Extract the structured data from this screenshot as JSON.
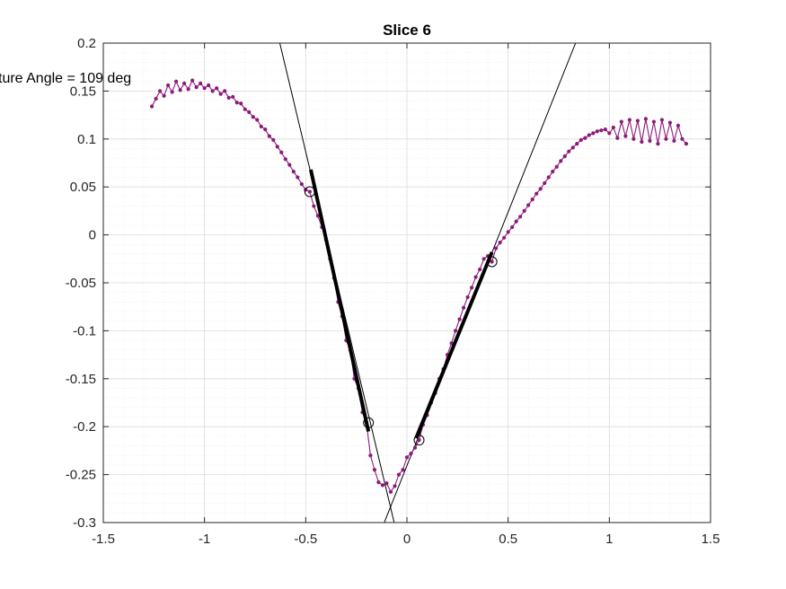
{
  "chart_data": {
    "type": "line",
    "title": "Slice 6",
    "annotation": "ture Angle = 109 deg",
    "xlabel": "",
    "ylabel": "",
    "xlim": [
      -1.5,
      1.5
    ],
    "ylim": [
      -0.3,
      0.2
    ],
    "xticks": [
      -1.5,
      -1,
      -0.5,
      0,
      0.5,
      1,
      1.5
    ],
    "xtick_labels": [
      "-1.5",
      "-1",
      "-0.5",
      "0",
      "0.5",
      "1",
      "1.5"
    ],
    "yticks": [
      -0.3,
      -0.25,
      -0.2,
      -0.15,
      -0.1,
      -0.05,
      0,
      0.05,
      0.1,
      0.15,
      0.2
    ],
    "ytick_labels": [
      "-0.3",
      "-0.25",
      "-0.2",
      "-0.15",
      "-0.1",
      "-0.05",
      "0",
      "0.05",
      "0.1",
      "0.15",
      "0.2"
    ],
    "grid": true,
    "minor_grid": true,
    "colors": {
      "profile": "#8b1a7a",
      "fit_line": "#000000"
    },
    "series": [
      {
        "points": [
          [
            -1.26,
            0.134
          ],
          [
            -1.24,
            0.142
          ],
          [
            -1.22,
            0.15
          ],
          [
            -1.2,
            0.145
          ],
          [
            -1.18,
            0.156
          ],
          [
            -1.16,
            0.149
          ],
          [
            -1.14,
            0.16
          ],
          [
            -1.12,
            0.151
          ],
          [
            -1.1,
            0.158
          ],
          [
            -1.08,
            0.152
          ],
          [
            -1.06,
            0.161
          ],
          [
            -1.04,
            0.154
          ],
          [
            -1.02,
            0.158
          ],
          [
            -1.0,
            0.153
          ],
          [
            -0.98,
            0.156
          ],
          [
            -0.96,
            0.15
          ],
          [
            -0.94,
            0.153
          ],
          [
            -0.92,
            0.147
          ],
          [
            -0.9,
            0.15
          ],
          [
            -0.88,
            0.143
          ],
          [
            -0.86,
            0.144
          ],
          [
            -0.84,
            0.138
          ],
          [
            -0.82,
            0.137
          ],
          [
            -0.8,
            0.131
          ],
          [
            -0.78,
            0.128
          ],
          [
            -0.76,
            0.123
          ],
          [
            -0.74,
            0.12
          ],
          [
            -0.72,
            0.113
          ],
          [
            -0.7,
            0.11
          ],
          [
            -0.68,
            0.103
          ],
          [
            -0.66,
            0.099
          ],
          [
            -0.64,
            0.092
          ],
          [
            -0.62,
            0.086
          ],
          [
            -0.6,
            0.079
          ],
          [
            -0.58,
            0.073
          ],
          [
            -0.56,
            0.066
          ],
          [
            -0.54,
            0.06
          ],
          [
            -0.52,
            0.053
          ],
          [
            -0.5,
            0.047
          ],
          [
            -0.48,
            0.045
          ],
          [
            -0.46,
            0.03
          ],
          [
            -0.44,
            0.02
          ],
          [
            -0.42,
            0.008
          ],
          [
            -0.4,
            -0.005
          ],
          [
            -0.38,
            -0.025
          ],
          [
            -0.36,
            -0.045
          ],
          [
            -0.34,
            -0.07
          ],
          [
            -0.32,
            -0.085
          ],
          [
            -0.3,
            -0.11
          ],
          [
            -0.28,
            -0.12
          ],
          [
            -0.26,
            -0.15
          ],
          [
            -0.24,
            -0.16
          ],
          [
            -0.22,
            -0.185
          ],
          [
            -0.2,
            -0.196
          ],
          [
            -0.18,
            -0.23
          ],
          [
            -0.16,
            -0.245
          ],
          [
            -0.14,
            -0.258
          ],
          [
            -0.12,
            -0.261
          ],
          [
            -0.1,
            -0.259
          ],
          [
            -0.08,
            -0.268
          ],
          [
            -0.06,
            -0.262
          ],
          [
            -0.04,
            -0.25
          ],
          [
            -0.02,
            -0.245
          ],
          [
            0.0,
            -0.232
          ],
          [
            0.02,
            -0.228
          ],
          [
            0.04,
            -0.222
          ],
          [
            0.06,
            -0.214
          ],
          [
            0.08,
            -0.198
          ],
          [
            0.1,
            -0.188
          ],
          [
            0.12,
            -0.175
          ],
          [
            0.14,
            -0.165
          ],
          [
            0.16,
            -0.15
          ],
          [
            0.18,
            -0.14
          ],
          [
            0.2,
            -0.125
          ],
          [
            0.22,
            -0.113
          ],
          [
            0.24,
            -0.1
          ],
          [
            0.26,
            -0.088
          ],
          [
            0.28,
            -0.076
          ],
          [
            0.3,
            -0.065
          ],
          [
            0.32,
            -0.055
          ],
          [
            0.34,
            -0.044
          ],
          [
            0.36,
            -0.036
          ],
          [
            0.38,
            -0.025
          ],
          [
            0.4,
            -0.022
          ],
          [
            0.42,
            -0.028
          ],
          [
            0.44,
            -0.014
          ],
          [
            0.46,
            -0.008
          ],
          [
            0.48,
            -0.003
          ],
          [
            0.5,
            0.003
          ],
          [
            0.52,
            0.008
          ],
          [
            0.54,
            0.014
          ],
          [
            0.56,
            0.019
          ],
          [
            0.58,
            0.025
          ],
          [
            0.6,
            0.031
          ],
          [
            0.62,
            0.037
          ],
          [
            0.64,
            0.043
          ],
          [
            0.66,
            0.048
          ],
          [
            0.68,
            0.054
          ],
          [
            0.7,
            0.06
          ],
          [
            0.72,
            0.066
          ],
          [
            0.74,
            0.071
          ],
          [
            0.76,
            0.077
          ],
          [
            0.78,
            0.082
          ],
          [
            0.8,
            0.087
          ],
          [
            0.82,
            0.091
          ],
          [
            0.84,
            0.095
          ],
          [
            0.86,
            0.099
          ],
          [
            0.88,
            0.101
          ],
          [
            0.9,
            0.104
          ],
          [
            0.92,
            0.106
          ],
          [
            0.94,
            0.108
          ],
          [
            0.96,
            0.109
          ],
          [
            0.98,
            0.11
          ],
          [
            1.0,
            0.106
          ],
          [
            1.02,
            0.112
          ],
          [
            1.04,
            0.101
          ],
          [
            1.06,
            0.118
          ],
          [
            1.08,
            0.103
          ],
          [
            1.1,
            0.12
          ],
          [
            1.12,
            0.1
          ],
          [
            1.14,
            0.119
          ],
          [
            1.16,
            0.097
          ],
          [
            1.18,
            0.121
          ],
          [
            1.2,
            0.098
          ],
          [
            1.22,
            0.118
          ],
          [
            1.24,
            0.095
          ],
          [
            1.26,
            0.12
          ],
          [
            1.28,
            0.1
          ],
          [
            1.3,
            0.117
          ],
          [
            1.32,
            0.098
          ],
          [
            1.34,
            0.114
          ],
          [
            1.36,
            0.1
          ],
          [
            1.38,
            0.095
          ]
        ]
      }
    ],
    "fit_lines": [
      {
        "through": [
          [
            -0.475,
            0.068
          ],
          [
            -0.19,
            -0.205
          ]
        ],
        "extended": [
          [
            -0.628,
            0.2
          ],
          [
            -0.063,
            -0.3
          ]
        ]
      },
      {
        "through": [
          [
            0.045,
            -0.212
          ],
          [
            0.42,
            -0.018
          ]
        ],
        "extended": [
          [
            -0.112,
            -0.3
          ],
          [
            0.833,
            0.2
          ]
        ]
      }
    ],
    "markers": [
      {
        "x": -0.48,
        "y": 0.045
      },
      {
        "x": -0.19,
        "y": -0.196
      },
      {
        "x": 0.06,
        "y": -0.214
      },
      {
        "x": 0.42,
        "y": -0.028
      }
    ]
  }
}
